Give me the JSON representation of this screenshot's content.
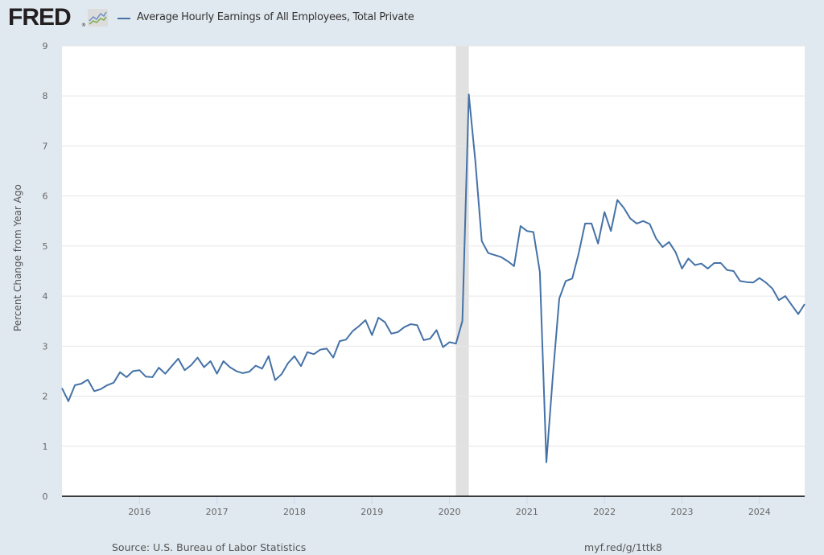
{
  "header": {
    "logo_text": "FRED",
    "logo_icon": "chart-line-icon",
    "legend_label": "Average Hourly Earnings of All Employees, Total Private"
  },
  "footer": {
    "source": "Source: U.S. Bureau of Labor Statistics",
    "short_url": "myf.red/g/1ttk8"
  },
  "colors": {
    "series": "#4572a7",
    "background": "#e1e9f0",
    "plot_background": "#ffffff",
    "recession": "#e1e1e1",
    "grid": "#e6e6e6"
  },
  "chart_data": {
    "type": "line",
    "title": "Average Hourly Earnings of All Employees, Total Private",
    "xlabel": "",
    "ylabel": "Percent Change from Year Ago",
    "ylim": [
      0,
      9
    ],
    "yticks": [
      "0",
      "1",
      "2",
      "3",
      "4",
      "5",
      "6",
      "7",
      "8",
      "9"
    ],
    "xticks": [
      "2016",
      "2017",
      "2018",
      "2019",
      "2020",
      "2021",
      "2022",
      "2023",
      "2024"
    ],
    "xlim": [
      "2015-01",
      "2024-08"
    ],
    "grid": true,
    "legend_position": "top-left",
    "recessions": [
      {
        "start": "2020-02",
        "end": "2020-04"
      }
    ],
    "series": [
      {
        "name": "Average Hourly Earnings of All Employees, Total Private",
        "start": "2015-01",
        "frequency": "monthly",
        "values": [
          2.16,
          1.9,
          2.22,
          2.25,
          2.33,
          2.1,
          2.14,
          2.22,
          2.27,
          2.48,
          2.38,
          2.5,
          2.52,
          2.39,
          2.38,
          2.57,
          2.45,
          2.6,
          2.75,
          2.52,
          2.62,
          2.77,
          2.58,
          2.7,
          2.45,
          2.7,
          2.58,
          2.5,
          2.46,
          2.49,
          2.61,
          2.55,
          2.8,
          2.32,
          2.44,
          2.66,
          2.8,
          2.6,
          2.88,
          2.84,
          2.93,
          2.95,
          2.77,
          3.1,
          3.13,
          3.3,
          3.4,
          3.52,
          3.22,
          3.57,
          3.48,
          3.25,
          3.28,
          3.38,
          3.44,
          3.42,
          3.12,
          3.15,
          3.32,
          2.98,
          3.08,
          3.05,
          3.5,
          8.03,
          6.7,
          5.1,
          4.86,
          4.82,
          4.78,
          4.7,
          4.6,
          5.4,
          5.3,
          5.28,
          4.48,
          0.68,
          2.4,
          3.95,
          4.3,
          4.35,
          4.85,
          5.45,
          5.45,
          5.05,
          5.68,
          5.3,
          5.92,
          5.76,
          5.55,
          5.45,
          5.5,
          5.44,
          5.15,
          4.98,
          5.08,
          4.88,
          4.55,
          4.75,
          4.62,
          4.65,
          4.55,
          4.66,
          4.66,
          4.52,
          4.5,
          4.3,
          4.28,
          4.27,
          4.36,
          4.27,
          4.15,
          3.92,
          4.0,
          3.82,
          3.64,
          3.84
        ]
      }
    ]
  }
}
